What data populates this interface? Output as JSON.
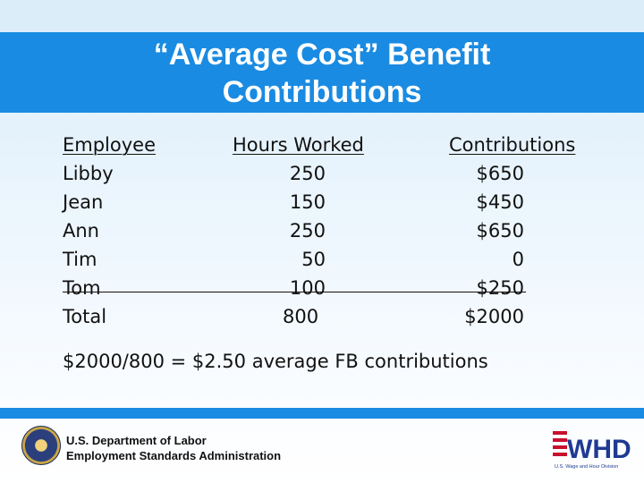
{
  "title_line1": "“Average Cost” Benefit",
  "title_line2": "Contributions",
  "headers": {
    "employee": "Employee",
    "hours": "Hours Worked",
    "contributions": "Contributions"
  },
  "rows": [
    {
      "employee": "Libby",
      "hours": "250",
      "contributions": "$650"
    },
    {
      "employee": "Jean",
      "hours": "150",
      "contributions": "$450"
    },
    {
      "employee": "Ann",
      "hours": "250",
      "contributions": "$650"
    },
    {
      "employee": "Tim",
      "hours": "50",
      "contributions": "0"
    },
    {
      "employee": "Tom",
      "hours": "100",
      "contributions": "$250"
    },
    {
      "employee": "Total",
      "hours": "800",
      "contributions": "$2000"
    }
  ],
  "formula": "$2000/800 = $2.50 average FB contributions",
  "footer": {
    "dept_line1": "U.S. Department of Labor",
    "dept_line2": "Employment Standards Administration",
    "whd_logo_text": "WHD",
    "whd_logo_caption": "U.S. Wage and Hour Division"
  },
  "colors": {
    "title_bar": "#1a8be2",
    "title_text": "#ffffff",
    "logo_red": "#c8102e",
    "logo_navy": "#1f3a93"
  }
}
